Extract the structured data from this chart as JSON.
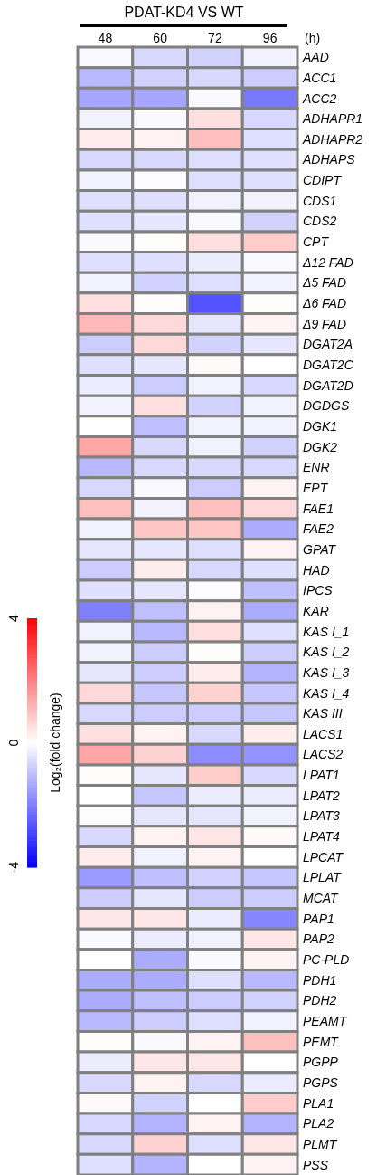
{
  "chart_data": {
    "type": "heatmap",
    "title": "PDAT-KD4 VS WT",
    "xlabel": "(h)",
    "clabel": "Log₂(fold change)",
    "clim": [
      -4,
      4
    ],
    "cticks": [
      -4,
      0,
      4
    ],
    "categories": [
      "48",
      "60",
      "72",
      "96"
    ],
    "y_categories": [
      "AAD",
      "ACC1",
      "ACC2",
      "ADHAPR1",
      "ADHAPR2",
      "ADHAPS",
      "CDIPT",
      "CDS1",
      "CDS2",
      "CPT",
      "Δ12 FAD",
      "Δ5 FAD",
      "Δ6 FAD",
      "Δ9 FAD",
      "DGAT2A",
      "DGAT2C",
      "DGAT2D",
      "DGDGS",
      "DGK1",
      "DGK2",
      "ENR",
      "EPT",
      "FAE1",
      "FAE2",
      "GPAT",
      "HAD",
      "IPCS",
      "KAR",
      "KAS I_1",
      "KAS I_2",
      "KAS I_3",
      "KAS I_4",
      "KAS III",
      "LACS1",
      "LACS2",
      "LPAT1",
      "LPAT2",
      "LPAT3",
      "LPAT4",
      "LPCAT",
      "LPLAT",
      "MCAT",
      "PAP1",
      "PAP2",
      "PC-PLD",
      "PDH1",
      "PDH2",
      "PEAMT",
      "PEMT",
      "PGPP",
      "PGPS",
      "PLA1",
      "PLA2",
      "PLMT",
      "PSS"
    ],
    "cells": [
      [
        -0.1,
        -0.6,
        -0.7,
        -0.2
      ],
      [
        -1.1,
        -0.7,
        -0.6,
        -0.8
      ],
      [
        -1.4,
        -1.4,
        -0.1,
        -2.1
      ],
      [
        -0.2,
        -0.1,
        0.5,
        -0.6
      ],
      [
        0.3,
        0.2,
        1.0,
        -0.5
      ],
      [
        -0.6,
        -0.6,
        -0.5,
        -0.5
      ],
      [
        -0.2,
        -0.05,
        -0.5,
        -0.5
      ],
      [
        -0.5,
        -0.5,
        -0.2,
        -0.2
      ],
      [
        -0.5,
        -0.4,
        -0.1,
        -0.7
      ],
      [
        -0.1,
        0.05,
        0.5,
        0.8
      ],
      [
        -0.5,
        -0.5,
        -0.3,
        -0.1
      ],
      [
        -0.2,
        -0.7,
        -0.5,
        -0.2
      ],
      [
        0.5,
        0.05,
        -2.7,
        0.05
      ],
      [
        1.1,
        0.6,
        -0.4,
        0.2
      ],
      [
        -0.8,
        0.6,
        -0.7,
        -0.4
      ],
      [
        -0.5,
        -0.4,
        0.1,
        0
      ],
      [
        -0.3,
        -0.8,
        -0.2,
        -0.6
      ],
      [
        -0.2,
        0.5,
        -0.7,
        -0.2
      ],
      [
        0,
        -1.0,
        -0.2,
        -0.2
      ],
      [
        1.4,
        -0.6,
        -0.2,
        -0.7
      ],
      [
        -1.1,
        -0.6,
        -0.6,
        -0.6
      ],
      [
        -0.6,
        -0.1,
        -0.8,
        0.2
      ],
      [
        1.0,
        -0.2,
        1.0,
        0.6
      ],
      [
        -0.2,
        0.9,
        0.9,
        -1.3
      ],
      [
        -0.4,
        -0.4,
        -0.5,
        0.2
      ],
      [
        -0.8,
        0.3,
        -0.6,
        -0.5
      ],
      [
        -0.5,
        -0.4,
        -0.05,
        -1.0
      ],
      [
        -2.0,
        -1.0,
        0.2,
        -1.3
      ],
      [
        -0.2,
        -1.1,
        0.5,
        -0.5
      ],
      [
        -0.2,
        -0.8,
        0.05,
        -0.8
      ],
      [
        -0.4,
        -0.8,
        0.3,
        -1.2
      ],
      [
        0.6,
        -0.9,
        0.7,
        -0.9
      ],
      [
        -0.6,
        -0.8,
        -0.8,
        -0.9
      ],
      [
        0.5,
        0.2,
        -0.6,
        0.3
      ],
      [
        1.4,
        0.7,
        -1.8,
        -1.7
      ],
      [
        0.05,
        -0.4,
        0.8,
        -0.6
      ],
      [
        0,
        -0.9,
        -0.3,
        -0.3
      ],
      [
        -0.05,
        -0.4,
        -0.4,
        -0.2
      ],
      [
        -0.6,
        0.2,
        0.4,
        0.1
      ],
      [
        0.3,
        -0.2,
        0.2,
        0
      ],
      [
        -1.6,
        -1.0,
        -0.7,
        -0.9
      ],
      [
        -0.8,
        -0.4,
        -0.8,
        -0.8
      ],
      [
        0.4,
        0.4,
        -0.3,
        -1.9
      ],
      [
        -0.1,
        -0.3,
        -0.2,
        0.4
      ],
      [
        0,
        -1.3,
        -0.1,
        0.2
      ],
      [
        -1.3,
        -1.3,
        -0.5,
        -1.1
      ],
      [
        -1.3,
        -1.0,
        -0.8,
        -0.7
      ],
      [
        -1.1,
        -0.8,
        -0.5,
        -0.2
      ],
      [
        0.05,
        -0.1,
        0.2,
        1.0
      ],
      [
        -0.3,
        0.4,
        0.4,
        0
      ],
      [
        -0.6,
        0.2,
        -0.6,
        -0.3
      ],
      [
        0.1,
        -0.7,
        0,
        0.8
      ],
      [
        -0.6,
        -1.2,
        0.2,
        -1.2
      ],
      [
        -0.6,
        0.7,
        -0.5,
        0.4
      ],
      [
        -0.5,
        -1.2,
        0,
        0.2
      ]
    ]
  }
}
